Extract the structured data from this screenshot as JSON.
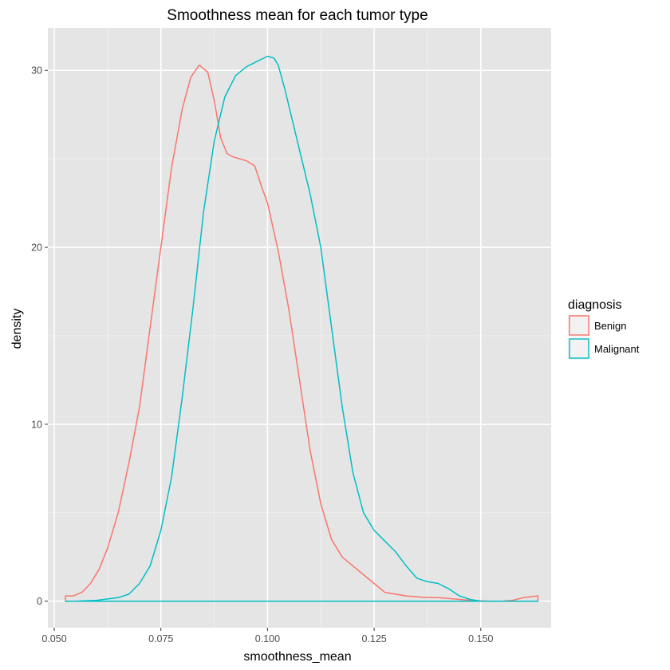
{
  "chart_data": {
    "type": "line",
    "subtype": "density",
    "title": "Smoothness mean for each tumor type",
    "xlabel": "smoothness_mean",
    "ylabel": "density",
    "xlim": [
      0.0485,
      0.1665
    ],
    "ylim": [
      -1.5,
      32.4
    ],
    "xticks": [
      0.05,
      0.075,
      0.1,
      0.125,
      0.15
    ],
    "xtick_labels": [
      "0.050",
      "0.075",
      "0.100",
      "0.125",
      "0.150"
    ],
    "yticks": [
      0,
      10,
      20,
      30
    ],
    "ytick_labels": [
      "0",
      "10",
      "20",
      "30"
    ],
    "grid": true,
    "background": "#e5e5e5",
    "legend": {
      "title": "diagnosis",
      "position": "right",
      "entries": [
        "Benign",
        "Malignant"
      ]
    },
    "series": [
      {
        "name": "Benign",
        "color": "#f8766d",
        "x": [
          0.05263,
          0.0545,
          0.0565,
          0.0585,
          0.0605,
          0.0625,
          0.065,
          0.0675,
          0.07,
          0.0725,
          0.075,
          0.0775,
          0.08,
          0.082,
          0.084,
          0.086,
          0.0875,
          0.089,
          0.0905,
          0.092,
          0.0935,
          0.095,
          0.097,
          0.0985,
          0.1,
          0.1025,
          0.105,
          0.1075,
          0.11,
          0.1125,
          0.115,
          0.1175,
          0.12,
          0.1225,
          0.125,
          0.1275,
          0.13,
          0.1325,
          0.135,
          0.1375,
          0.14,
          0.1425,
          0.145,
          0.1475,
          0.15,
          0.1525,
          0.155,
          0.1575,
          0.16,
          0.1634
        ],
        "y": [
          0.3,
          0.3,
          0.5,
          1.0,
          1.8,
          3.0,
          5.0,
          7.8,
          11.0,
          15.5,
          20.0,
          24.5,
          27.8,
          29.6,
          30.3,
          29.9,
          28.3,
          26.2,
          25.3,
          25.1,
          25.0,
          24.9,
          24.6,
          23.5,
          22.5,
          19.8,
          16.5,
          12.5,
          8.5,
          5.5,
          3.5,
          2.5,
          2.0,
          1.5,
          1.0,
          0.5,
          0.4,
          0.3,
          0.25,
          0.2,
          0.2,
          0.15,
          0.1,
          0.05,
          0.02,
          0.0,
          0.0,
          0.05,
          0.2,
          0.3
        ]
      },
      {
        "name": "Malignant",
        "color": "#00bfc4",
        "x": [
          0.05263,
          0.055,
          0.06,
          0.065,
          0.0675,
          0.07,
          0.0725,
          0.075,
          0.0775,
          0.08,
          0.0825,
          0.085,
          0.0875,
          0.09,
          0.0925,
          0.095,
          0.0975,
          0.1,
          0.1015,
          0.1025,
          0.104,
          0.106,
          0.108,
          0.11,
          0.1125,
          0.115,
          0.1175,
          0.12,
          0.1225,
          0.125,
          0.1275,
          0.13,
          0.1325,
          0.135,
          0.1375,
          0.14,
          0.1425,
          0.145,
          0.1475,
          0.15,
          0.1525,
          0.155,
          0.16,
          0.1634
        ],
        "y": [
          0.0,
          0.0,
          0.05,
          0.2,
          0.4,
          1.0,
          2.0,
          4.0,
          7.0,
          11.5,
          16.5,
          22.0,
          26.0,
          28.5,
          29.7,
          30.2,
          30.5,
          30.8,
          30.7,
          30.3,
          29.0,
          27.0,
          25.0,
          23.0,
          20.0,
          15.5,
          11.0,
          7.3,
          5.0,
          4.0,
          3.4,
          2.8,
          2.0,
          1.3,
          1.1,
          1.0,
          0.7,
          0.3,
          0.1,
          0.0,
          0.0,
          0.0,
          0.0,
          0.0
        ]
      }
    ]
  }
}
